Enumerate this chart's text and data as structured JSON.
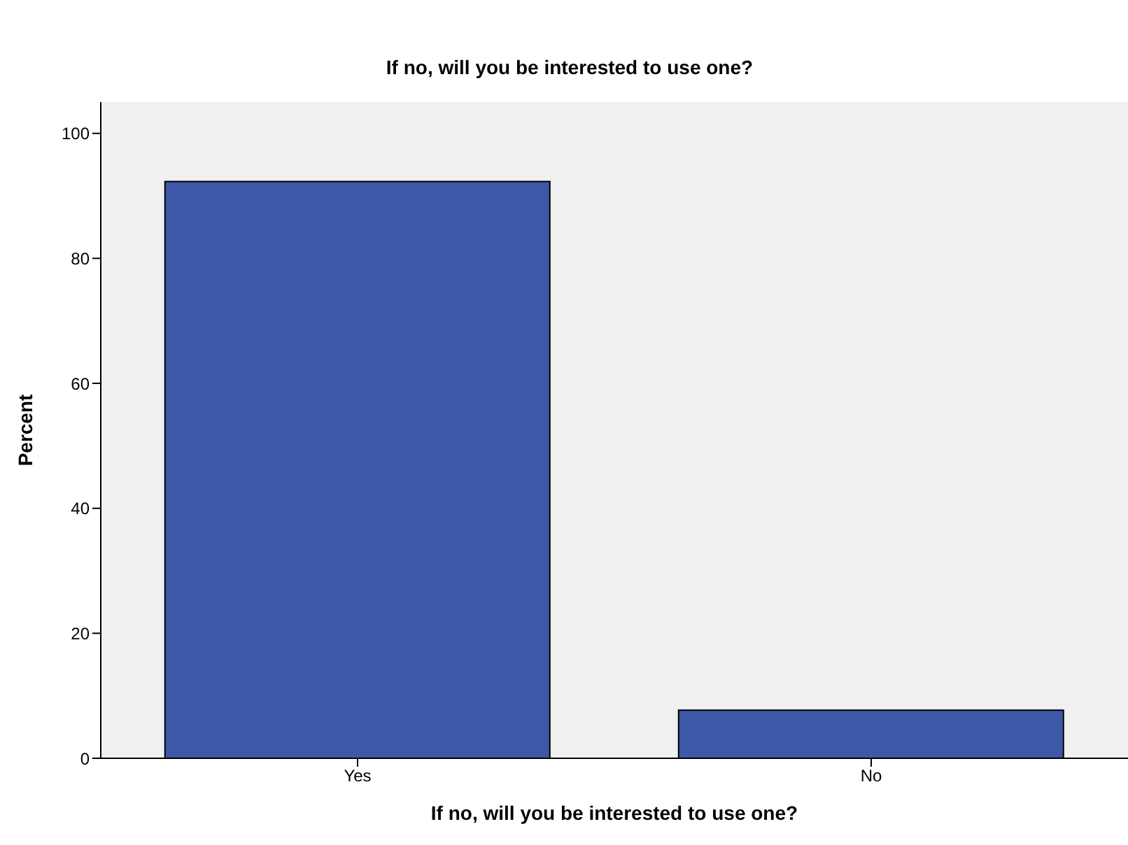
{
  "chart_data": {
    "type": "bar",
    "title": "If no, will you be interested to use one?",
    "xlabel": "If no, will you be interested to use one?",
    "ylabel": "Percent",
    "categories": [
      "Yes",
      "No"
    ],
    "values": [
      92.3,
      7.7
    ],
    "color": "#3e58a8",
    "ylim": [
      0,
      105
    ],
    "yticks": [
      0,
      20,
      40,
      60,
      80,
      100
    ],
    "legend": false
  }
}
